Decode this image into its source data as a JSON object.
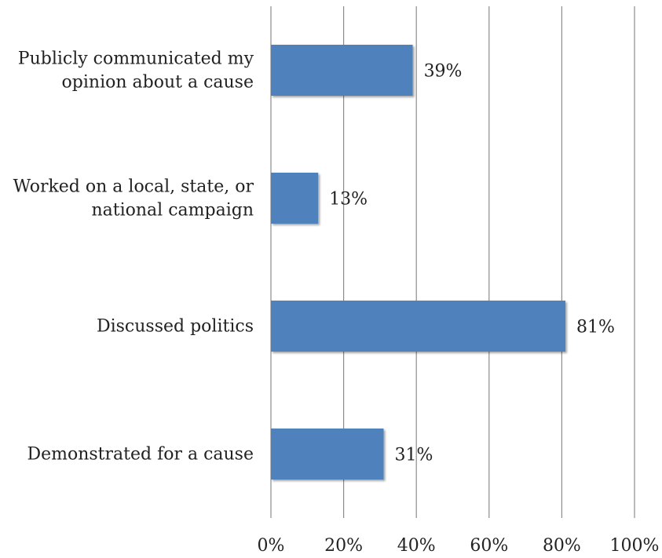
{
  "chart_data": {
    "type": "bar",
    "orientation": "horizontal",
    "categories": [
      [
        "Publicly communicated my",
        "opinion about a cause"
      ],
      [
        "Worked on a local, state, or",
        "national campaign"
      ],
      [
        "Discussed politics"
      ],
      [
        "Demonstrated for a cause"
      ]
    ],
    "values": [
      39,
      13,
      81,
      31
    ],
    "data_labels": [
      "39%",
      "13%",
      "81%",
      "31%"
    ],
    "xlim": [
      0,
      100
    ],
    "x_ticks": [
      0,
      20,
      40,
      60,
      80,
      100
    ],
    "x_tick_labels": [
      "0%",
      "20%",
      "40%",
      "60%",
      "80%",
      "100%"
    ],
    "grid": "vertical",
    "legend": "none",
    "bar_color": "#4F81BD",
    "title": "",
    "xlabel": "",
    "ylabel": ""
  }
}
